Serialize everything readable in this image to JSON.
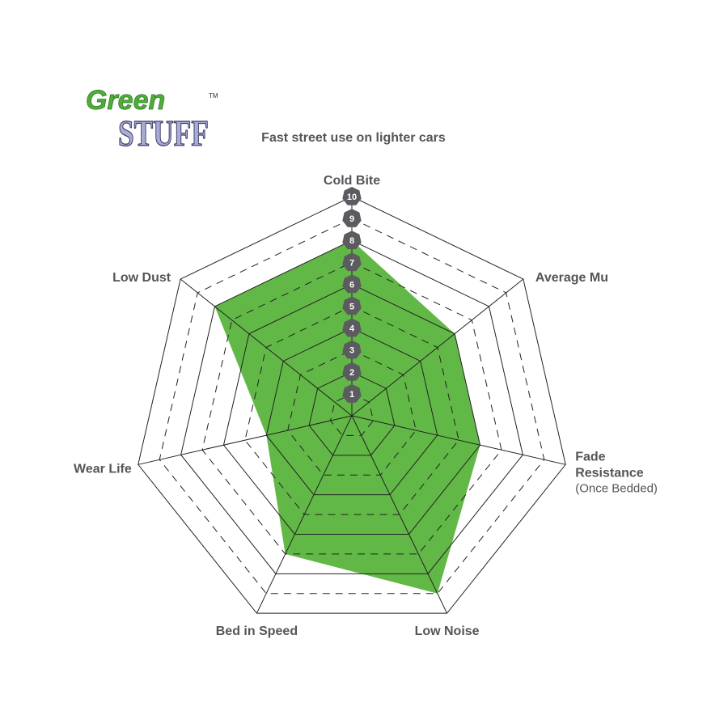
{
  "logo": {
    "line1": "Green",
    "line2": "STUFF",
    "mark": "TM"
  },
  "chart_data": {
    "type": "radar",
    "title": "Fast street use on lighter cars",
    "axes": [
      {
        "label": "Cold Bite",
        "value": 8
      },
      {
        "label": "Average Mu",
        "value": 6
      },
      {
        "label": "Fade Resistance",
        "sublabel": "(Once Bedded)",
        "value": 6
      },
      {
        "label": "Low Noise",
        "value": 9
      },
      {
        "label": "Bed in Speed",
        "value": 7
      },
      {
        "label": "Wear Life",
        "value": 4
      },
      {
        "label": "Low Dust",
        "value": 8
      }
    ],
    "scale": {
      "min": 0,
      "max": 10,
      "ticks": [
        "1",
        "2",
        "3",
        "4",
        "5",
        "6",
        "7",
        "8",
        "9",
        "10"
      ]
    },
    "grid": true,
    "colors": {
      "fill": "#62b846",
      "grid": "#222222",
      "badge": "#5b5b60",
      "text": "#555559",
      "logo_green": "#4fae3a",
      "logo_purple": "#a9acd8"
    }
  }
}
